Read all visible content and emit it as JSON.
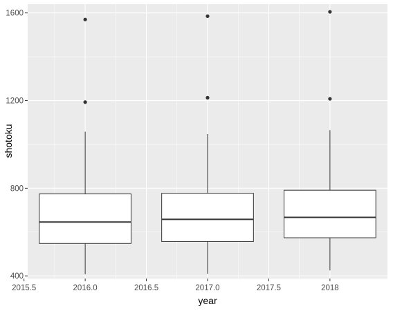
{
  "chart_data": {
    "type": "boxplot",
    "xlabel": "year",
    "ylabel": "shotoku",
    "xlim": [
      2015.53,
      2018.47
    ],
    "ylim": [
      388,
      1640
    ],
    "xticks": [
      2015.5,
      2016.0,
      2016.5,
      2017.0,
      2017.5,
      2018.0
    ],
    "xtick_labels": [
      "2015.5",
      "2016.0",
      "2016.5",
      "2017.0",
      "2017.5",
      "2018"
    ],
    "yticks": [
      400,
      800,
      1200,
      1600
    ],
    "ytick_labels": [
      "400",
      "800",
      "1200",
      "1600"
    ],
    "box_half_width": 0.375,
    "grid": true,
    "series": [
      {
        "x": 2016,
        "min": 407,
        "q1": 548,
        "median": 646,
        "q3": 774,
        "max": 1058,
        "outliers": [
          1193,
          1570
        ]
      },
      {
        "x": 2017,
        "min": 410,
        "q1": 557,
        "median": 658,
        "q3": 777,
        "max": 1047,
        "outliers": [
          1213,
          1585
        ]
      },
      {
        "x": 2018,
        "min": 425,
        "q1": 574,
        "median": 667,
        "q3": 791,
        "max": 1065,
        "outliers": [
          1208,
          1605
        ]
      }
    ]
  },
  "colors": {
    "panel": "#ebebeb",
    "grid_major": "#ffffff",
    "box_fill": "#ffffff",
    "line": "#333333",
    "text": "#4d4d4d",
    "title": "#000000"
  }
}
